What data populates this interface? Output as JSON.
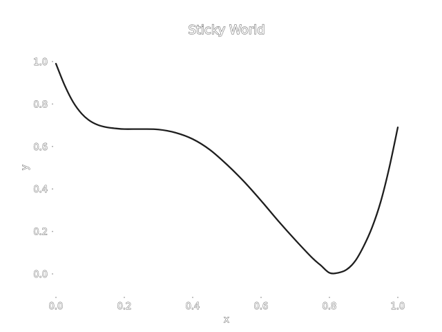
{
  "chart_data": {
    "type": "line",
    "title": "Sticky World",
    "xlabel": "x",
    "ylabel": "y",
    "xlim": [
      0.0,
      1.0
    ],
    "ylim": [
      -0.1,
      1.1
    ],
    "xticks": [
      "0.0",
      "0.2",
      "0.4",
      "0.6",
      "0.8",
      "1.0"
    ],
    "yticks": [
      "0.0",
      "0.2",
      "0.4",
      "0.6",
      "0.8",
      "1.0"
    ],
    "grid": false,
    "series": [
      {
        "color": "#1e1e1e",
        "x": [
          0.0,
          0.025,
          0.05,
          0.075,
          0.1,
          0.125,
          0.15,
          0.175,
          0.2,
          0.25,
          0.3,
          0.35,
          0.4,
          0.45,
          0.5,
          0.55,
          0.6,
          0.65,
          0.7,
          0.75,
          0.775,
          0.8,
          0.825,
          0.85,
          0.875,
          0.9,
          0.925,
          0.95,
          0.975,
          1.0
        ],
        "y": [
          0.99,
          0.89,
          0.81,
          0.755,
          0.72,
          0.7,
          0.69,
          0.685,
          0.682,
          0.682,
          0.68,
          0.665,
          0.635,
          0.585,
          0.515,
          0.435,
          0.345,
          0.25,
          0.16,
          0.075,
          0.04,
          0.005,
          0.005,
          0.02,
          0.06,
          0.13,
          0.22,
          0.34,
          0.5,
          0.69
        ]
      }
    ]
  }
}
